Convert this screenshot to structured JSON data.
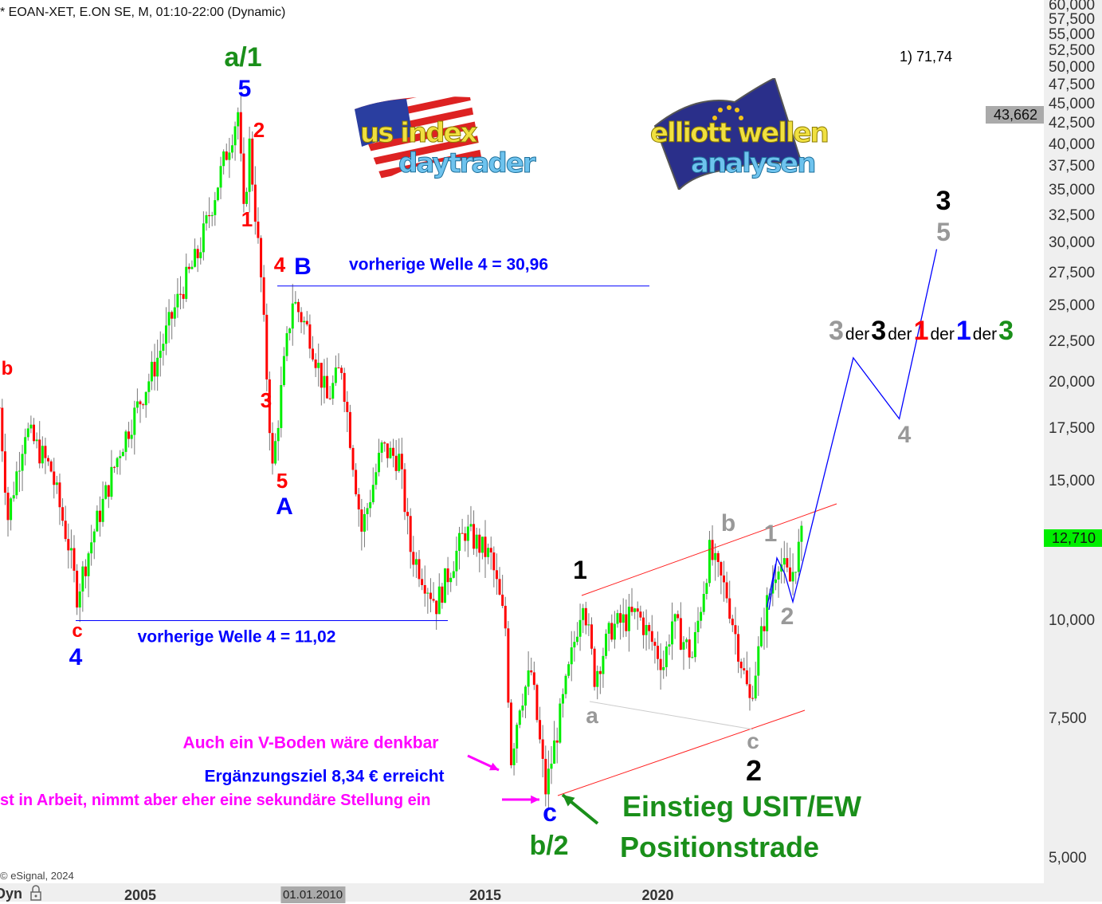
{
  "header": {
    "title": "* EOAN-XET, E.ON SE, M, 01:10-22:00 (Dynamic)",
    "copyright": "© eSignal, 2024",
    "mode_label": "Dyn",
    "lock_icon": "padlock-icon"
  },
  "logos": [
    {
      "line1": "us index",
      "line2": "daytrader",
      "flag": "us-flag"
    },
    {
      "line1": "elliott wellen",
      "line2": "analysen",
      "flag": "eu-flag"
    }
  ],
  "colors": {
    "up": "#00ee00",
    "down": "#ff0000",
    "wave_blue": "#0000ff",
    "wave_red": "#ff0000",
    "wave_green": "#1a8f1a",
    "wave_gray": "#999999",
    "magenta": "#ff00ff",
    "channel": "#ff2020",
    "last_price_bg": "#00ee00",
    "marker_bg": "#aaaaaa"
  },
  "chart_data": {
    "type": "candlestick",
    "symbol": "EOAN-XET",
    "interval": "M",
    "y_scale": "log",
    "ylim": [
      4500,
      61000
    ],
    "xlim": [
      "2000-12",
      "2030-03"
    ],
    "y_ticks": [
      "60,000",
      "57,500",
      "55,000",
      "52,500",
      "50,000",
      "47,500",
      "45,000",
      "42,500",
      "40,000",
      "37,500",
      "35,000",
      "32,500",
      "30,000",
      "27,500",
      "25,000",
      "22,500",
      "20,000",
      "17,500",
      "15,000",
      "10,000",
      "7,500",
      "5,000"
    ],
    "x_ticks": [
      {
        "label": "2005",
        "year": 2005
      },
      {
        "label": "2015",
        "year": 2015
      },
      {
        "label": "2020",
        "year": 2020
      }
    ],
    "x_cursor": {
      "label": "01.01.2010",
      "year": 2010
    },
    "last_price": {
      "label": "12,710",
      "value": 12710
    },
    "marker_price": {
      "label": "43,662",
      "value": 43662
    },
    "price_path": [
      [
        "2000-12",
        18600
      ],
      [
        "2001-03",
        13500
      ],
      [
        "2001-09",
        17500
      ],
      [
        "2002-06",
        15500
      ],
      [
        "2002-12",
        12500
      ],
      [
        "2003-03",
        10800
      ],
      [
        "2003-09",
        13000
      ],
      [
        "2004-06",
        16500
      ],
      [
        "2005-06",
        21000
      ],
      [
        "2006-03",
        26000
      ],
      [
        "2006-09",
        29000
      ],
      [
        "2007-06",
        38000
      ],
      [
        "2007-11",
        44000
      ],
      [
        "2008-01",
        32500
      ],
      [
        "2008-03",
        40000
      ],
      [
        "2008-07",
        27000
      ],
      [
        "2008-11",
        15500
      ],
      [
        "2009-03",
        21000
      ],
      [
        "2009-06",
        25500
      ],
      [
        "2009-12",
        23000
      ],
      [
        "2010-06",
        19000
      ],
      [
        "2010-11",
        21000
      ],
      [
        "2011-06",
        13000
      ],
      [
        "2012-01",
        16500
      ],
      [
        "2012-07",
        16000
      ],
      [
        "2012-11",
        12300
      ],
      [
        "2013-08",
        10500
      ],
      [
        "2014-06",
        13000
      ],
      [
        "2015-03",
        12000
      ],
      [
        "2015-08",
        9800
      ],
      [
        "2015-10",
        6700
      ],
      [
        "2016-01",
        7900
      ],
      [
        "2016-05",
        8600
      ],
      [
        "2016-10",
        6100
      ],
      [
        "2017-06",
        8600
      ],
      [
        "2017-11",
        10800
      ],
      [
        "2018-03",
        8500
      ],
      [
        "2018-09",
        9800
      ],
      [
        "2019-06",
        10200
      ],
      [
        "2020-03",
        8800
      ],
      [
        "2020-06",
        10000
      ],
      [
        "2021-01",
        9000
      ],
      [
        "2021-07",
        12200
      ],
      [
        "2022-01",
        10800
      ],
      [
        "2022-09",
        7900
      ],
      [
        "2023-03",
        10500
      ],
      [
        "2023-07",
        12000
      ],
      [
        "2023-11",
        11200
      ],
      [
        "2024-03",
        12710
      ]
    ],
    "levels": [
      {
        "label": "vorherige Welle 4 = 30,96",
        "value": 26500
      },
      {
        "label": "vorherige Welle 4 = 11,02",
        "value": 10000
      }
    ],
    "projection_path": [
      [
        "2023-03",
        10400
      ],
      [
        "2023-06",
        11800
      ]
    ],
    "forecast_path": [
      [
        "2023-11",
        10600
      ],
      [
        "2025-09",
        21500
      ],
      [
        "2027-01",
        18000
      ],
      [
        "2028-02",
        29500
      ]
    ],
    "corner_note": "1) 71,74"
  },
  "annotations": {
    "a1": "a/1",
    "blue5": "5",
    "red2": "2",
    "red1": "1",
    "red4": "4",
    "blueB": "B",
    "red3": "3",
    "red5": "5",
    "blueA": "A",
    "redb": "b",
    "redc": "c",
    "blue4": "4",
    "black1": "1",
    "graya": "a",
    "grayb": "b",
    "gray1": "1",
    "gray2": "2",
    "grayc": "c",
    "black2": "2",
    "bluec": "c",
    "b2": "b/2",
    "entry": "Einstieg USIT/EW",
    "position": "Positionstrade",
    "vboden": "Auch ein V-Boden wäre denkbar",
    "ziel": "Ergänzungsziel 8,34 € erreicht",
    "arbeit": "st in Arbeit, nimmt aber eher eine sekundäre Stellung ein",
    "black3": "3",
    "gray5": "5",
    "gray4": "4",
    "wave_degree": [
      {
        "t": "3",
        "kind": "n",
        "color": "#999999"
      },
      {
        "t": "der",
        "kind": "w"
      },
      {
        "t": "3",
        "kind": "n",
        "color": "#000000"
      },
      {
        "t": "der",
        "kind": "w"
      },
      {
        "t": "1",
        "kind": "n",
        "color": "#ff0000"
      },
      {
        "t": "der",
        "kind": "w"
      },
      {
        "t": "1",
        "kind": "n",
        "color": "#0000ff"
      },
      {
        "t": "der",
        "kind": "w"
      },
      {
        "t": "3",
        "kind": "n",
        "color": "#1a8f1a"
      }
    ]
  }
}
